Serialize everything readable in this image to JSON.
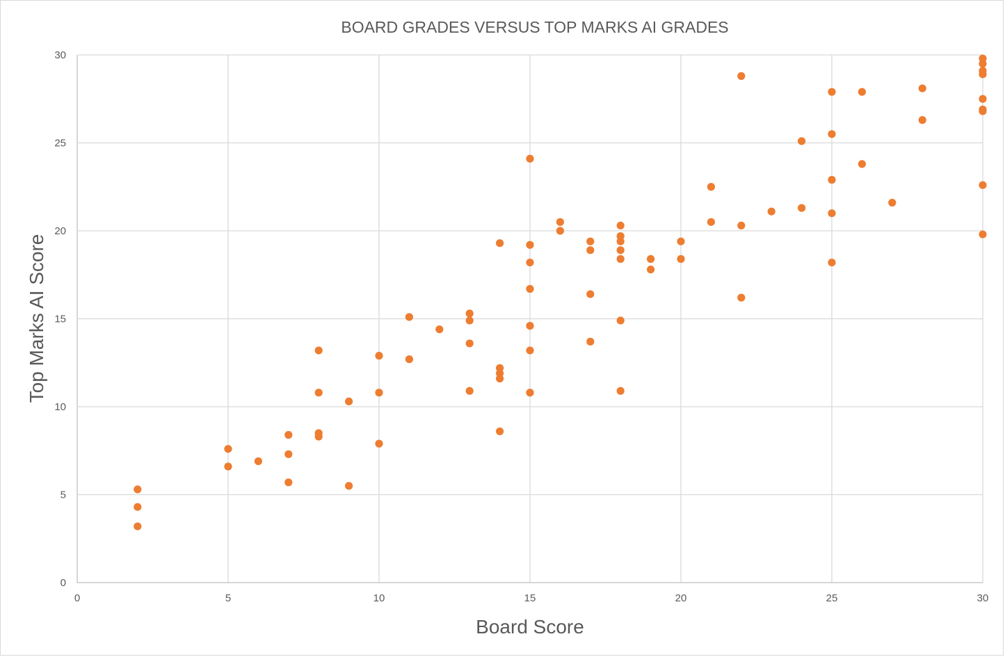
{
  "chart_data": {
    "type": "scatter",
    "title": "BOARD GRADES VERSUS TOP MARKS AI GRADES",
    "xlabel": "Board Score",
    "ylabel": "Top Marks AI Score",
    "xlim": [
      0,
      30
    ],
    "ylim": [
      0,
      30
    ],
    "xticks": [
      0,
      5,
      10,
      15,
      20,
      25,
      30
    ],
    "yticks": [
      0,
      5,
      10,
      15,
      20,
      25,
      30
    ],
    "grid": true,
    "legend": "none",
    "marker_color": "#ED7D31",
    "series": [
      {
        "points": [
          [
            2,
            5.3
          ],
          [
            2,
            4.3
          ],
          [
            2,
            3.2
          ],
          [
            5,
            7.6
          ],
          [
            5,
            6.6
          ],
          [
            6,
            6.9
          ],
          [
            7,
            8.4
          ],
          [
            7,
            7.3
          ],
          [
            7,
            5.7
          ],
          [
            8,
            13.2
          ],
          [
            8,
            10.8
          ],
          [
            8,
            8.5
          ],
          [
            8,
            8.3
          ],
          [
            9,
            10.3
          ],
          [
            9,
            5.5
          ],
          [
            10,
            12.9
          ],
          [
            10,
            10.8
          ],
          [
            10,
            7.9
          ],
          [
            11,
            15.1
          ],
          [
            11,
            12.7
          ],
          [
            12,
            14.4
          ],
          [
            13,
            15.3
          ],
          [
            13,
            14.9
          ],
          [
            13,
            13.6
          ],
          [
            13,
            10.9
          ],
          [
            14,
            19.3
          ],
          [
            14,
            12.2
          ],
          [
            14,
            11.9
          ],
          [
            14,
            11.6
          ],
          [
            14,
            8.6
          ],
          [
            15,
            24.1
          ],
          [
            15,
            19.2
          ],
          [
            15,
            18.2
          ],
          [
            15,
            16.7
          ],
          [
            15,
            14.6
          ],
          [
            15,
            13.2
          ],
          [
            15,
            10.8
          ],
          [
            16,
            20.5
          ],
          [
            16,
            20.0
          ],
          [
            17,
            19.4
          ],
          [
            17,
            18.9
          ],
          [
            17,
            16.4
          ],
          [
            17,
            13.7
          ],
          [
            18,
            20.3
          ],
          [
            18,
            19.7
          ],
          [
            18,
            19.4
          ],
          [
            18,
            18.9
          ],
          [
            18,
            18.4
          ],
          [
            18,
            14.9
          ],
          [
            18,
            10.9
          ],
          [
            19,
            18.4
          ],
          [
            19,
            17.8
          ],
          [
            20,
            19.4
          ],
          [
            20,
            18.4
          ],
          [
            21,
            22.5
          ],
          [
            21,
            20.5
          ],
          [
            22,
            28.8
          ],
          [
            22,
            20.3
          ],
          [
            22,
            16.2
          ],
          [
            23,
            21.1
          ],
          [
            24,
            25.1
          ],
          [
            24,
            21.3
          ],
          [
            25,
            27.9
          ],
          [
            25,
            25.5
          ],
          [
            25,
            22.9
          ],
          [
            25,
            21.0
          ],
          [
            25,
            18.2
          ],
          [
            26,
            27.9
          ],
          [
            26,
            23.8
          ],
          [
            27,
            21.6
          ],
          [
            28,
            28.1
          ],
          [
            28,
            26.3
          ],
          [
            30,
            29.8
          ],
          [
            30,
            29.5
          ],
          [
            30,
            29.1
          ],
          [
            30,
            28.9
          ],
          [
            30,
            27.5
          ],
          [
            30,
            26.9
          ],
          [
            30,
            26.8
          ],
          [
            30,
            22.6
          ],
          [
            30,
            19.8
          ]
        ]
      }
    ]
  }
}
